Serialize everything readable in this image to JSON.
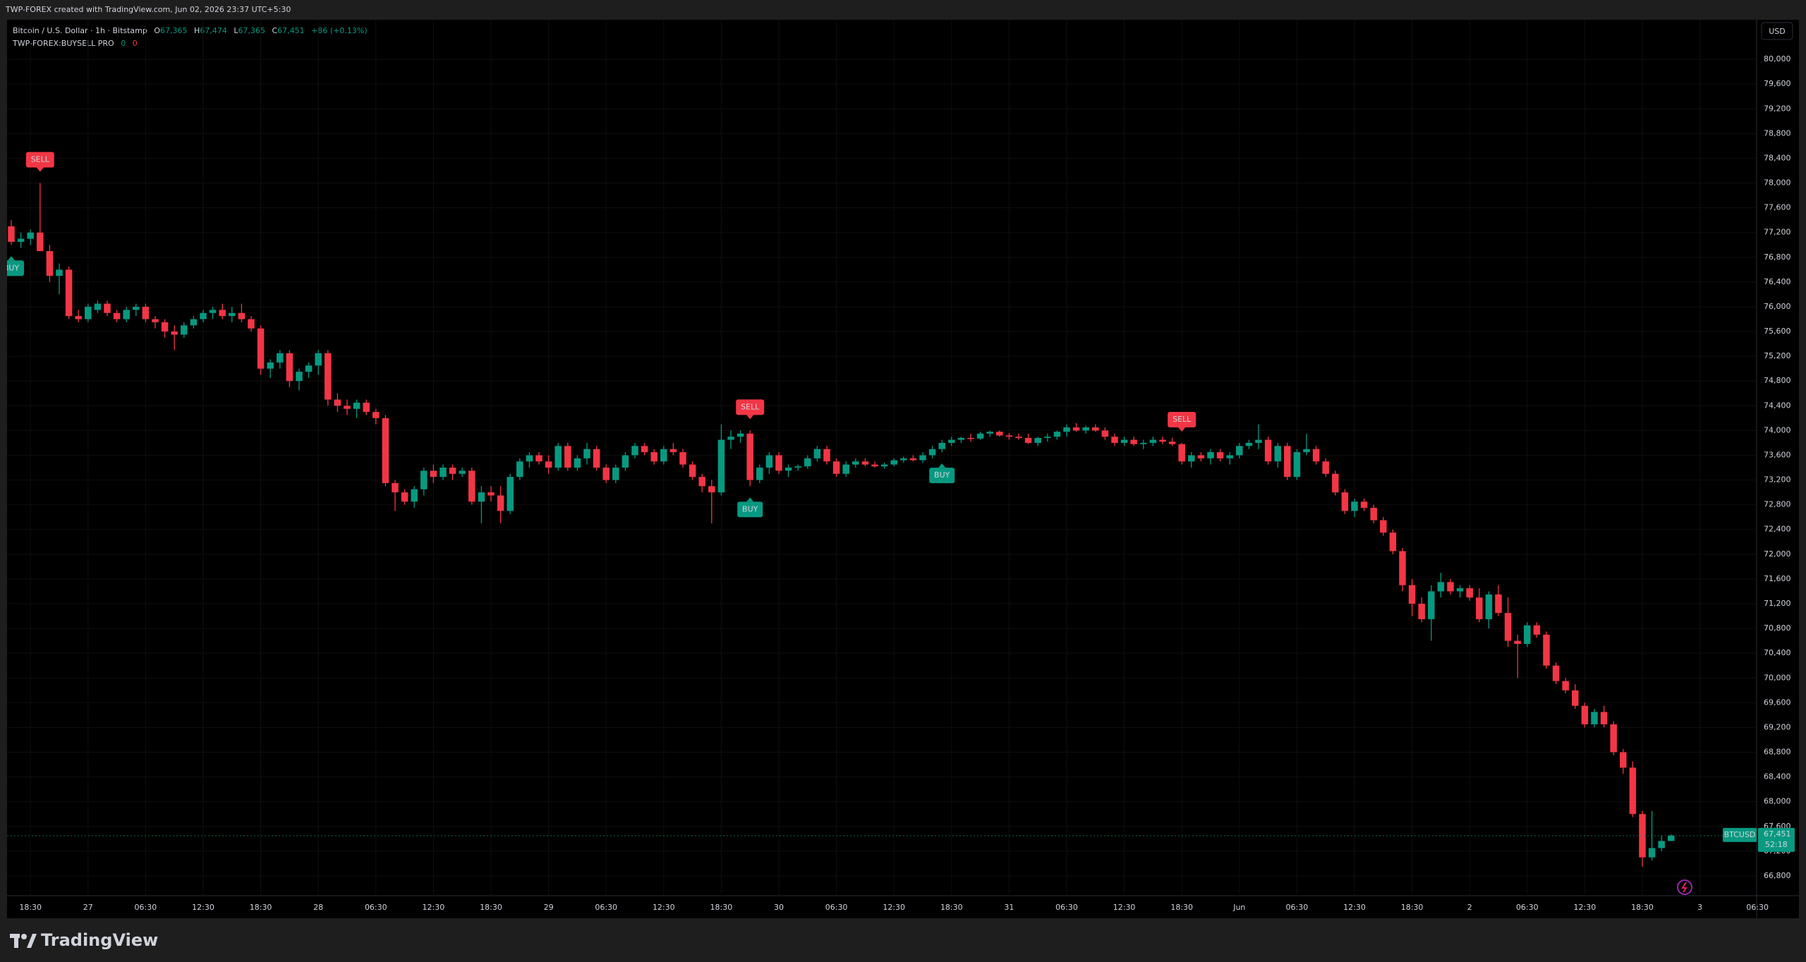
{
  "header": {
    "attribution": "TWP-FOREX created with TradingView.com, Jun 02, 2026 23:37 UTC+5:30"
  },
  "legend": {
    "symbol": "Bitcoin / U.S. Dollar · 1h · Bitstamp",
    "o_key": "O",
    "o": "67,365",
    "h_key": "H",
    "h": "67,474",
    "l_key": "L",
    "l": "67,365",
    "c_key": "C",
    "c": "67,451",
    "change": "+86 (+0.13%)",
    "indicator": "TWP-FOREX:BUYSELL PRO",
    "ind_a": "0",
    "ind_b": "0"
  },
  "currency": "USD",
  "price_tag": {
    "symbol": "BTCUSD",
    "price": "67,451",
    "timer": "52:18"
  },
  "footer": {
    "brand": "TradingView"
  },
  "chart_data": {
    "type": "candlestick",
    "up_color": "#089981",
    "down_color": "#f23645",
    "ylim": [
      66480,
      80640
    ],
    "yticks": [
      {
        "value": 66800,
        "label": "66,800"
      },
      {
        "value": 67200,
        "label": "67,200"
      },
      {
        "value": 67600,
        "label": "67,600"
      },
      {
        "value": 68000,
        "label": "68,000"
      },
      {
        "value": 68400,
        "label": "68,400"
      },
      {
        "value": 68800,
        "label": "68,800"
      },
      {
        "value": 69200,
        "label": "69,200"
      },
      {
        "value": 69600,
        "label": "69,600"
      },
      {
        "value": 70000,
        "label": "70,000"
      },
      {
        "value": 70400,
        "label": "70,400"
      },
      {
        "value": 70800,
        "label": "70,800"
      },
      {
        "value": 71200,
        "label": "71,200"
      },
      {
        "value": 71600,
        "label": "71,600"
      },
      {
        "value": 72000,
        "label": "72,000"
      },
      {
        "value": 72400,
        "label": "72,400"
      },
      {
        "value": 72800,
        "label": "72,800"
      },
      {
        "value": 73200,
        "label": "73,200"
      },
      {
        "value": 73600,
        "label": "73,600"
      },
      {
        "value": 74000,
        "label": "74,000"
      },
      {
        "value": 74400,
        "label": "74,400"
      },
      {
        "value": 74800,
        "label": "74,800"
      },
      {
        "value": 75200,
        "label": "75,200"
      },
      {
        "value": 75600,
        "label": "75,600"
      },
      {
        "value": 76000,
        "label": "76,000"
      },
      {
        "value": 76400,
        "label": "76,400"
      },
      {
        "value": 76800,
        "label": "76,800"
      },
      {
        "value": 77200,
        "label": "77,200"
      },
      {
        "value": 77600,
        "label": "77,600"
      },
      {
        "value": 78000,
        "label": "78,000"
      },
      {
        "value": 78400,
        "label": "78,400"
      },
      {
        "value": 78800,
        "label": "78,800"
      },
      {
        "value": 79200,
        "label": "79,200"
      },
      {
        "value": 79600,
        "label": "79,600"
      },
      {
        "value": 80000,
        "label": "80,000"
      }
    ],
    "xlabels": [
      "18:30",
      "27",
      "06:30",
      "12:30",
      "18:30",
      "28",
      "06:30",
      "12:30",
      "18:30",
      "29",
      "06:30",
      "12:30",
      "18:30",
      "30",
      "06:30",
      "12:30",
      "18:30",
      "31",
      "06:30",
      "12:30",
      "18:30",
      "Jun",
      "06:30",
      "12:30",
      "18:30",
      "2",
      "06:30",
      "12:30",
      "18:30",
      "3",
      "06:30"
    ],
    "ohlc": [
      [
        77300,
        77400,
        77000,
        77050
      ],
      [
        77050,
        77200,
        76950,
        77100
      ],
      [
        77100,
        77250,
        77000,
        77200
      ],
      [
        77200,
        78000,
        76900,
        76900
      ],
      [
        76900,
        77000,
        76400,
        76500
      ],
      [
        76500,
        76700,
        76200,
        76600
      ],
      [
        76600,
        76650,
        75800,
        75850
      ],
      [
        75850,
        75950,
        75750,
        75800
      ],
      [
        75800,
        76050,
        75750,
        76000
      ],
      [
        75950,
        76100,
        75900,
        76050
      ],
      [
        76050,
        76100,
        75850,
        75900
      ],
      [
        75900,
        75950,
        75750,
        75800
      ],
      [
        75800,
        76000,
        75750,
        75950
      ],
      [
        75950,
        76050,
        75850,
        76000
      ],
      [
        76000,
        76050,
        75750,
        75800
      ],
      [
        75800,
        75850,
        75650,
        75750
      ],
      [
        75750,
        75800,
        75500,
        75600
      ],
      [
        75600,
        75700,
        75300,
        75550
      ],
      [
        75550,
        75750,
        75500,
        75700
      ],
      [
        75700,
        75850,
        75650,
        75800
      ],
      [
        75800,
        75950,
        75750,
        75900
      ],
      [
        75900,
        76000,
        75800,
        75950
      ],
      [
        75950,
        76050,
        75800,
        75850
      ],
      [
        75850,
        76000,
        75750,
        75900
      ],
      [
        75900,
        76050,
        75750,
        75800
      ],
      [
        75800,
        75850,
        75600,
        75650
      ],
      [
        75650,
        75700,
        74900,
        75000
      ],
      [
        75000,
        75150,
        74850,
        75100
      ],
      [
        75100,
        75300,
        75000,
        75250
      ],
      [
        75250,
        75300,
        74700,
        74800
      ],
      [
        74800,
        75000,
        74650,
        74950
      ],
      [
        74950,
        75100,
        74850,
        75050
      ],
      [
        75050,
        75300,
        74900,
        75250
      ],
      [
        75250,
        75300,
        74400,
        74500
      ],
      [
        74500,
        74600,
        74300,
        74400
      ],
      [
        74400,
        74500,
        74250,
        74350
      ],
      [
        74350,
        74500,
        74200,
        74450
      ],
      [
        74450,
        74500,
        74250,
        74300
      ],
      [
        74300,
        74350,
        74100,
        74200
      ],
      [
        74200,
        74250,
        73100,
        73150
      ],
      [
        73150,
        73200,
        72700,
        73000
      ],
      [
        73000,
        73050,
        72800,
        72850
      ],
      [
        72850,
        73100,
        72750,
        73050
      ],
      [
        73050,
        73400,
        72950,
        73350
      ],
      [
        73350,
        73450,
        73150,
        73250
      ],
      [
        73250,
        73450,
        73200,
        73400
      ],
      [
        73400,
        73450,
        73200,
        73300
      ],
      [
        73300,
        73400,
        73250,
        73350
      ],
      [
        73350,
        73400,
        72800,
        72850
      ],
      [
        72850,
        73100,
        72500,
        73000
      ],
      [
        73000,
        73100,
        72850,
        72950
      ],
      [
        72950,
        73100,
        72500,
        72700
      ],
      [
        72700,
        73300,
        72650,
        73250
      ],
      [
        73250,
        73550,
        73200,
        73500
      ],
      [
        73500,
        73650,
        73400,
        73600
      ],
      [
        73600,
        73650,
        73450,
        73500
      ],
      [
        73500,
        73600,
        73300,
        73400
      ],
      [
        73400,
        73800,
        73350,
        73750
      ],
      [
        73750,
        73800,
        73350,
        73400
      ],
      [
        73400,
        73600,
        73350,
        73550
      ],
      [
        73550,
        73800,
        73450,
        73700
      ],
      [
        73700,
        73750,
        73350,
        73400
      ],
      [
        73400,
        73450,
        73150,
        73200
      ],
      [
        73200,
        73450,
        73150,
        73400
      ],
      [
        73400,
        73650,
        73350,
        73600
      ],
      [
        73600,
        73800,
        73550,
        73750
      ],
      [
        73750,
        73800,
        73600,
        73650
      ],
      [
        73650,
        73700,
        73450,
        73500
      ],
      [
        73500,
        73750,
        73450,
        73700
      ],
      [
        73700,
        73800,
        73600,
        73650
      ],
      [
        73650,
        73700,
        73400,
        73450
      ],
      [
        73450,
        73500,
        73200,
        73250
      ],
      [
        73250,
        73300,
        73000,
        73100
      ],
      [
        73100,
        73200,
        72500,
        73000
      ],
      [
        73000,
        74100,
        72950,
        73850
      ],
      [
        73850,
        74000,
        73700,
        73900
      ],
      [
        73900,
        74000,
        73800,
        73950
      ],
      [
        73950,
        74000,
        73100,
        73200
      ],
      [
        73200,
        73450,
        73150,
        73400
      ],
      [
        73400,
        73650,
        73300,
        73600
      ],
      [
        73600,
        73650,
        73300,
        73350
      ],
      [
        73350,
        73450,
        73250,
        73400
      ],
      [
        73400,
        73450,
        73350,
        73420
      ],
      [
        73420,
        73600,
        73380,
        73550
      ],
      [
        73550,
        73750,
        73500,
        73700
      ],
      [
        73700,
        73750,
        73450,
        73500
      ],
      [
        73500,
        73550,
        73250,
        73300
      ],
      [
        73300,
        73500,
        73250,
        73450
      ],
      [
        73450,
        73550,
        73400,
        73500
      ],
      [
        73500,
        73550,
        73420,
        73450
      ],
      [
        73450,
        73500,
        73400,
        73420
      ],
      [
        73420,
        73480,
        73380,
        73450
      ],
      [
        73450,
        73550,
        73420,
        73520
      ],
      [
        73520,
        73580,
        73480,
        73550
      ],
      [
        73550,
        73600,
        73500,
        73520
      ],
      [
        73520,
        73650,
        73480,
        73600
      ],
      [
        73600,
        73750,
        73550,
        73700
      ],
      [
        73700,
        73850,
        73650,
        73800
      ],
      [
        73800,
        73900,
        73750,
        73850
      ],
      [
        73850,
        73900,
        73800,
        73880
      ],
      [
        73880,
        73950,
        73820,
        73870
      ],
      [
        73870,
        73980,
        73850,
        73950
      ],
      [
        73950,
        74000,
        73900,
        73980
      ],
      [
        73980,
        74000,
        73900,
        73920
      ],
      [
        73920,
        73960,
        73850,
        73900
      ],
      [
        73900,
        73950,
        73850,
        73880
      ],
      [
        73880,
        73950,
        73780,
        73800
      ],
      [
        73800,
        73900,
        73750,
        73880
      ],
      [
        73880,
        73950,
        73820,
        73900
      ],
      [
        73900,
        74000,
        73850,
        73980
      ],
      [
        73980,
        74100,
        73900,
        74050
      ],
      [
        74050,
        74120,
        73980,
        74000
      ],
      [
        74000,
        74080,
        73950,
        74050
      ],
      [
        74050,
        74100,
        73980,
        74000
      ],
      [
        74000,
        74050,
        73850,
        73900
      ],
      [
        73900,
        73950,
        73750,
        73800
      ],
      [
        73800,
        73900,
        73750,
        73850
      ],
      [
        73850,
        73900,
        73750,
        73780
      ],
      [
        73780,
        73850,
        73700,
        73800
      ],
      [
        73800,
        73900,
        73750,
        73850
      ],
      [
        73850,
        73900,
        73780,
        73820
      ],
      [
        73820,
        73880,
        73750,
        73780
      ],
      [
        73780,
        73800,
        73450,
        73500
      ],
      [
        73500,
        73650,
        73400,
        73600
      ],
      [
        73600,
        73650,
        73500,
        73550
      ],
      [
        73550,
        73700,
        73450,
        73650
      ],
      [
        73650,
        73700,
        73500,
        73550
      ],
      [
        73550,
        73650,
        73450,
        73600
      ],
      [
        73600,
        73800,
        73550,
        73750
      ],
      [
        73750,
        73850,
        73700,
        73800
      ],
      [
        73800,
        74100,
        73700,
        73850
      ],
      [
        73850,
        73900,
        73450,
        73500
      ],
      [
        73500,
        73800,
        73400,
        73750
      ],
      [
        73750,
        73800,
        73200,
        73250
      ],
      [
        73250,
        73700,
        73200,
        73650
      ],
      [
        73650,
        73950,
        73600,
        73700
      ],
      [
        73700,
        73750,
        73450,
        73500
      ],
      [
        73500,
        73550,
        73250,
        73300
      ],
      [
        73300,
        73350,
        72950,
        73000
      ],
      [
        73000,
        73050,
        72650,
        72700
      ],
      [
        72700,
        72900,
        72600,
        72850
      ],
      [
        72850,
        72900,
        72700,
        72750
      ],
      [
        72750,
        72800,
        72500,
        72550
      ],
      [
        72550,
        72600,
        72300,
        72350
      ],
      [
        72350,
        72400,
        72000,
        72050
      ],
      [
        72050,
        72100,
        71400,
        71500
      ],
      [
        71500,
        71600,
        71000,
        71200
      ],
      [
        71200,
        71300,
        70900,
        70950
      ],
      [
        70950,
        71500,
        70600,
        71400
      ],
      [
        71400,
        71700,
        71300,
        71550
      ],
      [
        71550,
        71600,
        71350,
        71400
      ],
      [
        71400,
        71500,
        71300,
        71450
      ],
      [
        71450,
        71500,
        71250,
        71300
      ],
      [
        71300,
        71450,
        70900,
        70950
      ],
      [
        70950,
        71400,
        70800,
        71350
      ],
      [
        71350,
        71500,
        71000,
        71050
      ],
      [
        71050,
        71300,
        70500,
        70600
      ],
      [
        70600,
        70700,
        70000,
        70550
      ],
      [
        70550,
        70900,
        70500,
        70850
      ],
      [
        70850,
        70900,
        70650,
        70700
      ],
      [
        70700,
        70750,
        70150,
        70200
      ],
      [
        70200,
        70250,
        69900,
        69950
      ],
      [
        69950,
        70000,
        69750,
        69800
      ],
      [
        69800,
        69900,
        69500,
        69550
      ],
      [
        69550,
        69600,
        69200,
        69250
      ],
      [
        69250,
        69500,
        69200,
        69450
      ],
      [
        69450,
        69550,
        69200,
        69250
      ],
      [
        69250,
        69300,
        68750,
        68800
      ],
      [
        68800,
        68850,
        68450,
        68550
      ],
      [
        68550,
        68650,
        67750,
        67800
      ],
      [
        67800,
        67850,
        66950,
        67100
      ],
      [
        67100,
        67850,
        67050,
        67250
      ],
      [
        67250,
        67450,
        67200,
        67365
      ],
      [
        67365,
        67474,
        67365,
        67451
      ]
    ],
    "signals": [
      {
        "label": "BUY",
        "index": 0
      },
      {
        "label": "SELL",
        "index": 3
      },
      {
        "label": "SELL",
        "index": 77
      },
      {
        "label": "BUY",
        "index": 77
      },
      {
        "label": "BUY",
        "index": 97
      },
      {
        "label": "SELL",
        "index": 122
      }
    ]
  }
}
